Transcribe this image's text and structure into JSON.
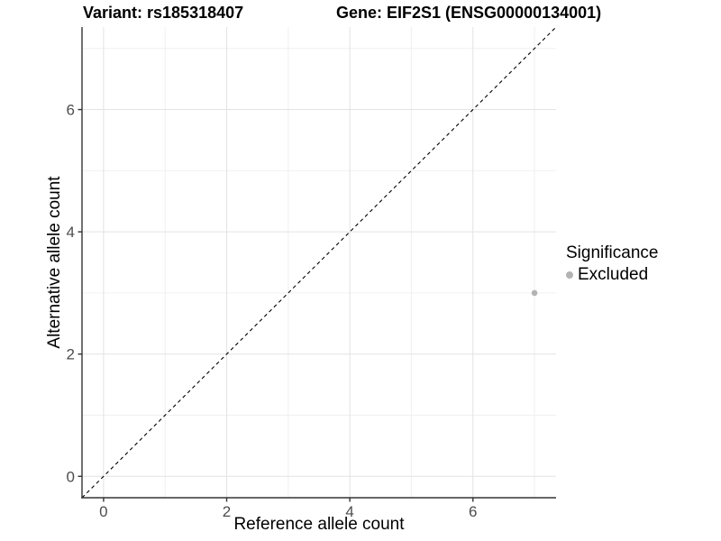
{
  "title": {
    "variant": "Variant: rs185318407",
    "gene": "Gene: EIF2S1 (ENSG00000134001)"
  },
  "chart_data": {
    "type": "scatter",
    "title_left": "Variant: rs185318407",
    "title_right": "Gene: EIF2S1 (ENSG00000134001)",
    "xlabel": "Reference allele count",
    "ylabel": "Alternative allele count",
    "xlim": [
      -0.35,
      7.35
    ],
    "ylim": [
      -0.35,
      7.35
    ],
    "x_ticks": [
      0,
      2,
      4,
      6
    ],
    "y_ticks": [
      0,
      2,
      4,
      6
    ],
    "x_minor": [
      1,
      3,
      5,
      7
    ],
    "y_minor": [
      1,
      3,
      5,
      7
    ],
    "grid": true,
    "series": [
      {
        "name": "Excluded",
        "color": "#b3b3b3",
        "points": [
          {
            "x": 7,
            "y": 3
          }
        ]
      }
    ],
    "reference_line": {
      "type": "identity",
      "from": [
        -0.35,
        -0.35
      ],
      "to": [
        7.35,
        7.35
      ],
      "style": "dashed",
      "color": "#000000"
    },
    "legend": {
      "title": "Significance",
      "position": "right",
      "items": [
        {
          "label": "Excluded",
          "color": "#b3b3b3"
        }
      ]
    }
  },
  "colors": {
    "background": "#ffffff",
    "major_grid": "#e3e3e3",
    "minor_grid": "#f0f0f0",
    "axis_line": "#333333",
    "tick_mark": "#333333",
    "tick_label": "#4d4d4d",
    "point": "#b3b3b3"
  }
}
